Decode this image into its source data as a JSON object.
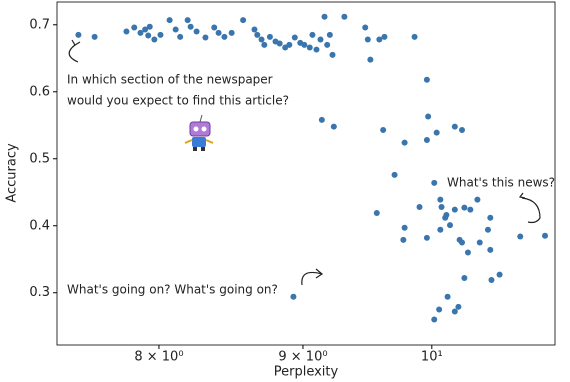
{
  "chart_data": {
    "type": "scatter",
    "xlabel": "Perplexity",
    "ylabel": "Accuracy",
    "log_x": true,
    "color": "#3a75ae",
    "xlim": [
      7.36,
      11.06
    ],
    "ylim": [
      0.222,
      0.734
    ],
    "xticks": [
      {
        "value": 8,
        "label": "8 × 10⁰"
      },
      {
        "value": 9,
        "label": "9 × 10⁰"
      },
      {
        "value": 10,
        "label": "10¹"
      }
    ],
    "yticks": [
      0.3,
      0.4,
      0.5,
      0.6,
      0.7
    ],
    "annotations": [
      "In which section of the newspaper",
      "would you expect to find this article?",
      "What's this news?",
      "What's going on? What's going on?"
    ],
    "x": [
      7.49,
      7.59,
      7.79,
      7.84,
      7.88,
      7.91,
      7.93,
      7.94,
      7.97,
      8.01,
      8.07,
      8.11,
      8.14,
      8.19,
      8.21,
      8.25,
      8.31,
      8.37,
      8.4,
      8.44,
      8.49,
      8.57,
      8.65,
      8.67,
      8.7,
      8.72,
      8.76,
      8.8,
      8.83,
      8.87,
      8.9,
      8.94,
      8.98,
      9.01,
      9.05,
      9.07,
      9.1,
      9.13,
      9.16,
      9.18,
      9.2,
      9.22,
      9.31,
      9.47,
      9.49,
      9.51,
      9.58,
      9.62,
      9.86,
      9.96,
      9.97,
      9.14,
      9.23,
      8.93,
      9.61,
      9.78,
      9.96,
      10.04,
      10.19,
      10.25,
      9.7,
      10.02,
      9.56,
      9.78,
      9.77,
      9.9,
      9.96,
      10.07,
      10.08,
      10.11,
      10.12,
      10.15,
      10.19,
      10.07,
      10.23,
      10.27,
      10.32,
      10.38,
      10.47,
      10.49,
      10.25,
      10.3,
      10.4,
      10.75,
      10.97,
      10.27,
      10.5,
      10.57,
      10.13,
      10.02,
      10.06,
      10.19,
      10.22,
      10.49
    ],
    "values": [
      0.685,
      0.682,
      0.69,
      0.696,
      0.688,
      0.693,
      0.684,
      0.697,
      0.678,
      0.685,
      0.707,
      0.693,
      0.682,
      0.707,
      0.697,
      0.69,
      0.681,
      0.696,
      0.688,
      0.682,
      0.688,
      0.707,
      0.693,
      0.685,
      0.678,
      0.67,
      0.682,
      0.675,
      0.672,
      0.666,
      0.67,
      0.681,
      0.673,
      0.67,
      0.666,
      0.685,
      0.663,
      0.678,
      0.712,
      0.67,
      0.685,
      0.655,
      0.712,
      0.696,
      0.678,
      0.648,
      0.678,
      0.682,
      0.682,
      0.618,
      0.563,
      0.558,
      0.548,
      0.294,
      0.543,
      0.524,
      0.528,
      0.539,
      0.548,
      0.543,
      0.476,
      0.464,
      0.419,
      0.397,
      0.379,
      0.428,
      0.382,
      0.439,
      0.428,
      0.412,
      0.416,
      0.401,
      0.424,
      0.394,
      0.379,
      0.427,
      0.424,
      0.439,
      0.394,
      0.412,
      0.375,
      0.36,
      0.375,
      0.384,
      0.385,
      0.322,
      0.319,
      0.327,
      0.294,
      0.26,
      0.275,
      0.272,
      0.279,
      0.364
    ]
  }
}
